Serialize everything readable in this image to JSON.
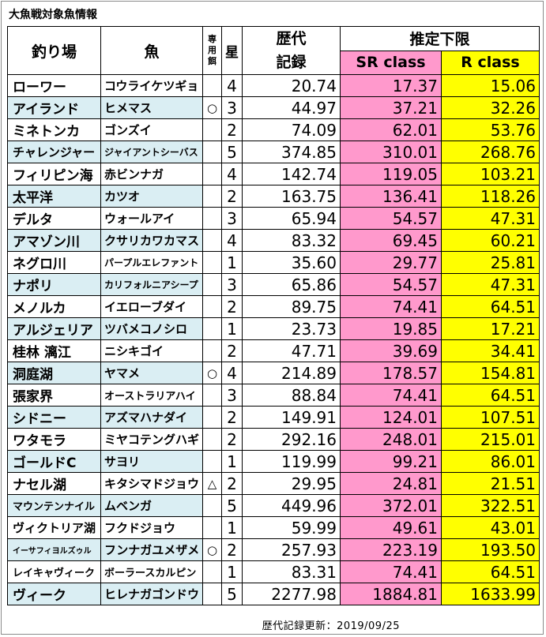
{
  "title": "大魚戦対象魚情報",
  "header": {
    "spot": "釣り場",
    "fish": "魚",
    "bait": "専用餌",
    "star": "星",
    "record_line1": "歴代",
    "record_line2": "記録",
    "estimate": "推定下限",
    "sr_class": "SR class",
    "r_class": "R class"
  },
  "rows": [
    {
      "spot": "ローワー",
      "fish": "コウライケツギョ",
      "bait": "",
      "star": "4",
      "record": "20.74",
      "sr": "17.37",
      "r": "15.06"
    },
    {
      "spot": "アイランド",
      "fish": "ヒメマス",
      "bait": "○",
      "star": "3",
      "record": "44.97",
      "sr": "37.21",
      "r": "32.26"
    },
    {
      "spot": "ミネトンカ",
      "fish": "ゴンズイ",
      "bait": "",
      "star": "2",
      "record": "74.09",
      "sr": "62.01",
      "r": "53.76"
    },
    {
      "spot": "チャレンジャー",
      "fish": "ジャイアントシーバス",
      "bait": "",
      "star": "5",
      "record": "374.85",
      "sr": "310.01",
      "r": "268.76"
    },
    {
      "spot": "フィリピン海",
      "fish": "赤ビンナガ",
      "bait": "",
      "star": "4",
      "record": "142.74",
      "sr": "119.05",
      "r": "103.21"
    },
    {
      "spot": "太平洋",
      "fish": "カツオ",
      "bait": "",
      "star": "2",
      "record": "163.75",
      "sr": "136.41",
      "r": "118.26"
    },
    {
      "spot": "デルタ",
      "fish": "ウォールアイ",
      "bait": "",
      "star": "3",
      "record": "65.94",
      "sr": "54.57",
      "r": "47.31"
    },
    {
      "spot": "アマゾン川",
      "fish": "クサリカワカマス",
      "bait": "",
      "star": "4",
      "record": "83.32",
      "sr": "69.45",
      "r": "60.21"
    },
    {
      "spot": "ネグロ川",
      "fish": "パープルエレファント",
      "bait": "",
      "star": "1",
      "record": "35.60",
      "sr": "29.77",
      "r": "25.81"
    },
    {
      "spot": "ナポリ",
      "fish": "カリフォルニアシープ",
      "bait": "",
      "star": "3",
      "record": "65.86",
      "sr": "54.57",
      "r": "47.31"
    },
    {
      "spot": "メノルカ",
      "fish": "イエローブダイ",
      "bait": "",
      "star": "2",
      "record": "89.75",
      "sr": "74.41",
      "r": "64.51"
    },
    {
      "spot": "アルジェリア",
      "fish": "ツバメコノシロ",
      "bait": "",
      "star": "1",
      "record": "23.73",
      "sr": "19.85",
      "r": "17.21"
    },
    {
      "spot": "桂林 漓江",
      "fish": "ニシキゴイ",
      "bait": "",
      "star": "2",
      "record": "47.71",
      "sr": "39.69",
      "r": "34.41"
    },
    {
      "spot": "洞庭湖",
      "fish": "ヤマメ",
      "bait": "○",
      "star": "4",
      "record": "214.89",
      "sr": "178.57",
      "r": "154.81"
    },
    {
      "spot": "張家界",
      "fish": "オーストラリアハイ",
      "bait": "",
      "star": "3",
      "record": "88.84",
      "sr": "74.41",
      "r": "64.51"
    },
    {
      "spot": "シドニー",
      "fish": "アズマハナダイ",
      "bait": "",
      "star": "2",
      "record": "149.91",
      "sr": "124.01",
      "r": "107.51"
    },
    {
      "spot": "ワタモラ",
      "fish": "ミヤコテングハギ",
      "bait": "",
      "star": "2",
      "record": "292.16",
      "sr": "248.01",
      "r": "215.01"
    },
    {
      "spot": "ゴールドC",
      "fish": "サヨリ",
      "bait": "",
      "star": "1",
      "record": "119.99",
      "sr": "99.21",
      "r": "86.01"
    },
    {
      "spot": "ナセル湖",
      "fish": "キタシマドジョウ",
      "bait": "△",
      "star": "2",
      "record": "29.95",
      "sr": "24.81",
      "r": "21.51"
    },
    {
      "spot": "マウンテンナイル",
      "fish": "ムベンガ",
      "bait": "",
      "star": "5",
      "record": "449.96",
      "sr": "372.01",
      "r": "322.51"
    },
    {
      "spot": "ヴィクトリア湖",
      "fish": "フクドジョウ",
      "bait": "",
      "star": "1",
      "record": "59.99",
      "sr": "49.61",
      "r": "43.01"
    },
    {
      "spot": "イーサフィヨルズゥル",
      "fish": "フンナガユメザメ",
      "bait": "○",
      "star": "2",
      "record": "257.93",
      "sr": "223.19",
      "r": "193.50"
    },
    {
      "spot": "レイキャヴィーク",
      "fish": "ボーラースカルピン",
      "bait": "",
      "star": "1",
      "record": "83.31",
      "sr": "74.41",
      "r": "64.51"
    },
    {
      "spot": "ヴィーク",
      "fish": "ヒレナガゴンドウ",
      "bait": "",
      "star": "5",
      "record": "2277.98",
      "sr": "1884.81",
      "r": "1633.99"
    }
  ],
  "footer": "歴代記録更新：2019/09/25"
}
